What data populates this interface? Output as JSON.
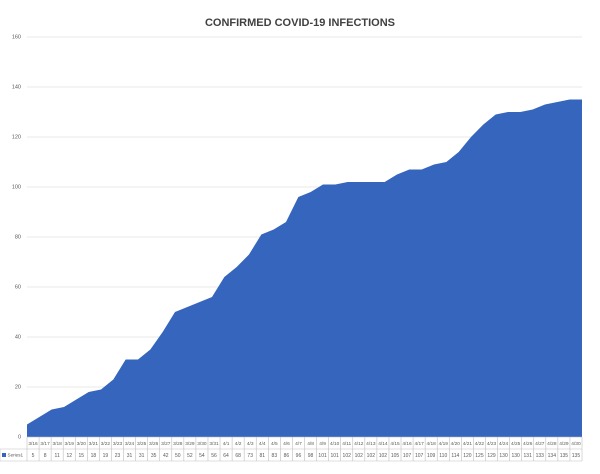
{
  "chart_data": {
    "type": "area",
    "title": "CONFIRMED COVID-19 INFECTIONS",
    "categories": [
      "3/16",
      "3/17",
      "3/18",
      "3/19",
      "3/20",
      "3/21",
      "3/22",
      "3/23",
      "3/24",
      "3/25",
      "3/26",
      "3/27",
      "3/28",
      "3/29",
      "3/30",
      "3/31",
      "4/1",
      "4/2",
      "4/3",
      "4/4",
      "4/5",
      "4/6",
      "4/7",
      "4/8",
      "4/9",
      "4/10",
      "4/11",
      "4/12",
      "4/13",
      "4/14",
      "4/15",
      "4/16",
      "4/17",
      "4/18",
      "4/19",
      "4/20",
      "4/21",
      "4/22",
      "4/23",
      "4/24",
      "4/25",
      "4/26",
      "4/27",
      "4/28",
      "4/29",
      "4/30"
    ],
    "series": [
      {
        "name": "Series1",
        "color": "#3565bc",
        "values": [
          5,
          8,
          11,
          12,
          15,
          18,
          19,
          23,
          31,
          31,
          35,
          42,
          50,
          52,
          54,
          56,
          64,
          68,
          73,
          81,
          83,
          86,
          96,
          98,
          101,
          101,
          102,
          102,
          102,
          102,
          105,
          107,
          107,
          109,
          110,
          114,
          120,
          125,
          129,
          130,
          130,
          131,
          133,
          134,
          135,
          135
        ]
      }
    ],
    "ylim": [
      0,
      160
    ],
    "yticks": [
      0,
      20,
      40,
      60,
      80,
      100,
      120,
      140,
      160
    ],
    "grid": true,
    "data_table": true
  }
}
